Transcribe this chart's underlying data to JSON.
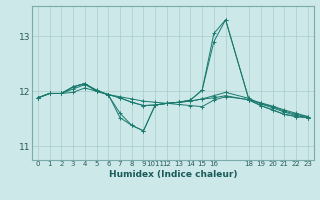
{
  "xlabel": "Humidex (Indice chaleur)",
  "bg_color": "#cce8e8",
  "grid_color": "#aacccc",
  "line_color": "#1a7a6e",
  "xlim": [
    -0.5,
    23.5
  ],
  "ylim": [
    10.75,
    13.55
  ],
  "yticks": [
    11,
    12,
    13
  ],
  "xtick_positions": [
    0,
    1,
    2,
    3,
    4,
    5,
    6,
    7,
    8,
    9,
    10,
    11,
    12,
    13,
    14,
    15,
    16,
    18,
    19,
    20,
    21,
    22,
    23
  ],
  "xtick_labels": [
    "0",
    "1",
    "2",
    "3",
    "4",
    "5",
    "6",
    "7",
    "8",
    "9",
    "1011",
    "12",
    "13",
    "14",
    "15",
    "16",
    "",
    "18",
    "19",
    "20",
    "21",
    "22",
    "23"
  ],
  "series": [
    {
      "x": [
        0,
        1,
        2,
        3,
        4,
        5,
        6,
        7,
        8,
        9,
        10,
        11,
        12,
        13,
        14,
        15,
        16,
        18,
        19,
        20,
        21,
        22,
        23
      ],
      "y": [
        11.88,
        11.96,
        11.96,
        12.04,
        12.12,
        12.02,
        11.93,
        11.6,
        11.38,
        11.28,
        11.75,
        11.78,
        11.8,
        11.84,
        12.02,
        13.05,
        13.3,
        11.84,
        11.74,
        11.66,
        11.58,
        11.54,
        11.52
      ]
    },
    {
      "x": [
        0,
        1,
        2,
        3,
        4,
        5,
        6,
        7,
        8,
        9,
        10,
        11,
        12,
        13,
        14,
        15,
        16,
        18,
        19,
        20,
        21,
        22,
        23
      ],
      "y": [
        11.88,
        11.96,
        11.96,
        12.08,
        12.14,
        12.0,
        11.94,
        11.9,
        11.86,
        11.82,
        11.8,
        11.78,
        11.76,
        11.74,
        11.72,
        11.84,
        11.9,
        11.85,
        11.79,
        11.73,
        11.66,
        11.6,
        11.54
      ]
    },
    {
      "x": [
        0,
        1,
        2,
        3,
        4,
        5,
        6,
        7,
        8,
        9,
        10,
        11,
        12,
        13,
        14,
        15,
        16,
        18,
        19,
        20,
        21,
        22,
        23
      ],
      "y": [
        11.88,
        11.96,
        11.96,
        12.08,
        12.14,
        12.0,
        11.94,
        11.52,
        11.38,
        11.28,
        11.75,
        11.78,
        11.8,
        11.84,
        12.02,
        12.9,
        13.3,
        11.84,
        11.74,
        11.66,
        11.58,
        11.54,
        11.52
      ]
    },
    {
      "x": [
        0,
        1,
        2,
        3,
        4,
        5,
        6,
        7,
        8,
        9,
        10,
        11,
        12,
        13,
        14,
        15,
        16,
        18,
        19,
        20,
        21,
        22,
        23
      ],
      "y": [
        11.88,
        11.96,
        11.96,
        11.98,
        12.06,
        12.0,
        11.94,
        11.88,
        11.8,
        11.74,
        11.75,
        11.78,
        11.8,
        11.82,
        11.86,
        11.88,
        11.92,
        11.84,
        11.78,
        11.72,
        11.64,
        11.58,
        11.54
      ]
    },
    {
      "x": [
        0,
        1,
        2,
        3,
        4,
        5,
        6,
        7,
        8,
        9,
        10,
        11,
        12,
        13,
        14,
        15,
        16,
        18,
        19,
        20,
        21,
        22,
        23
      ],
      "y": [
        11.88,
        11.96,
        11.96,
        12.08,
        12.14,
        12.02,
        11.94,
        11.88,
        11.8,
        11.74,
        11.75,
        11.78,
        11.8,
        11.82,
        11.86,
        11.92,
        11.98,
        11.87,
        11.77,
        11.7,
        11.62,
        11.56,
        11.52
      ]
    }
  ]
}
